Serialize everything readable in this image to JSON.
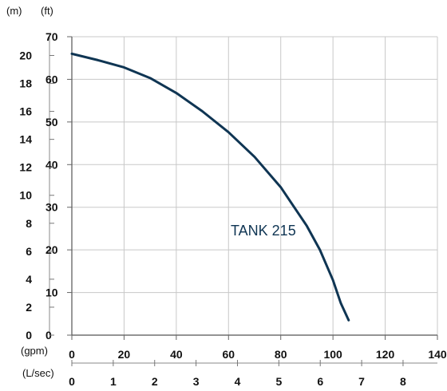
{
  "chart_data": {
    "type": "line",
    "title": "",
    "annotation": "TANK 215",
    "axes": {
      "y_left_m_label": "(m)",
      "y_left_ft_label": "(ft)",
      "x_bottom_gpm_label": "(gpm)",
      "x_bottom_lsec_label": "(L/sec)"
    },
    "grid": true,
    "x_gpm": {
      "range": [
        0,
        140
      ],
      "ticks": [
        "0",
        "20",
        "40",
        "60",
        "80",
        "100",
        "120",
        "140"
      ]
    },
    "x_lsec": {
      "range": [
        0,
        8.83
      ],
      "ticks": [
        "0",
        "1",
        "2",
        "3",
        "4",
        "5",
        "6",
        "7",
        "8"
      ]
    },
    "y_ft": {
      "range": [
        0,
        70
      ],
      "ticks": [
        "0",
        "10",
        "20",
        "30",
        "40",
        "50",
        "60",
        "70"
      ]
    },
    "y_m": {
      "range": [
        0,
        21.34
      ],
      "ticks": [
        "0",
        "2",
        "4",
        "6",
        "8",
        "10",
        "12",
        "14",
        "16",
        "18",
        "20"
      ]
    },
    "series": [
      {
        "name": "TANK 215",
        "color": "#0f3553",
        "x": [
          0,
          10,
          20,
          30,
          40,
          50,
          60,
          70,
          80,
          90,
          95,
          100,
          103,
          106
        ],
        "y": [
          66,
          64.5,
          62.8,
          60.3,
          56.8,
          52.5,
          47.6,
          41.8,
          34.7,
          25.6,
          20,
          12.9,
          7.5,
          3.5
        ]
      }
    ]
  }
}
